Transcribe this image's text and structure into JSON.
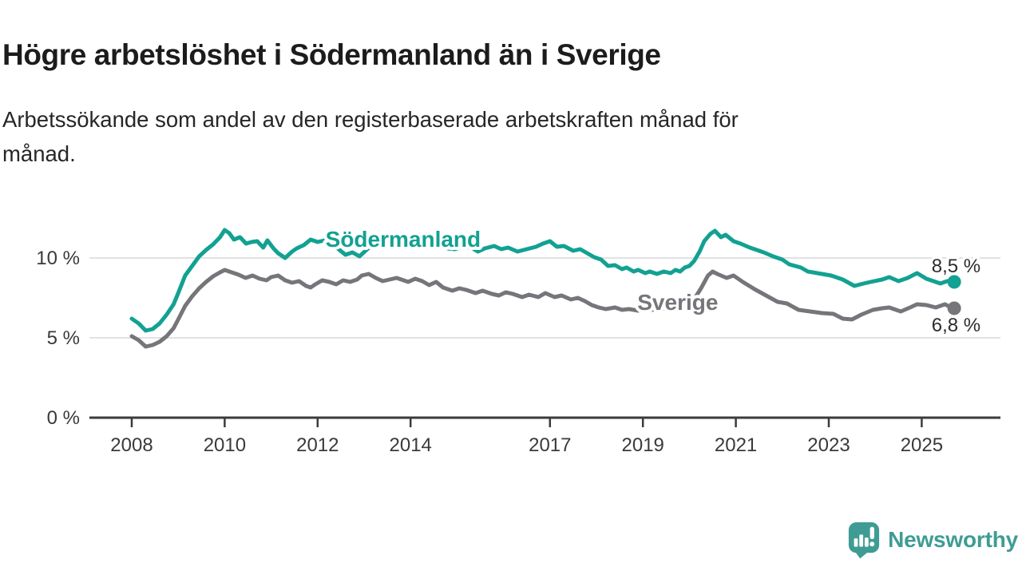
{
  "chart_data": {
    "type": "line",
    "title": "Högre arbetslöshet i Södermanland än i Sverige",
    "subtitle_lines": [
      "Arbetssökande som andel av den registerbaserade arbetskraften månad för",
      "månad."
    ],
    "x_unit": "year (monthly values)",
    "xlim": [
      2008,
      2026.1
    ],
    "ylim": [
      0,
      12.5
    ],
    "grid": true,
    "axis_color": "#3b3b3b",
    "grid_color": "#d8d8d8",
    "tick_label_color": "#3a3a3a",
    "value_label_color": "#2d2d2d",
    "yticks": [
      {
        "value": 0,
        "label": "0 %"
      },
      {
        "value": 5,
        "label": "5 %"
      },
      {
        "value": 10,
        "label": "10 %"
      }
    ],
    "xticks": [
      {
        "value": 2008,
        "label": "2008"
      },
      {
        "value": 2010,
        "label": "2010"
      },
      {
        "value": 2012,
        "label": "2012"
      },
      {
        "value": 2014,
        "label": "2014"
      },
      {
        "value": 2017,
        "label": "2017"
      },
      {
        "value": 2019,
        "label": "2019"
      },
      {
        "value": 2021,
        "label": "2021"
      },
      {
        "value": 2023,
        "label": "2023"
      },
      {
        "value": 2025,
        "label": "2025"
      }
    ],
    "series": [
      {
        "name": "Södermanland",
        "color": "#12A192",
        "end_value": 8.5,
        "end_label": "8,5 %",
        "label_anchor": {
          "x": 2013.84,
          "y": 10.7
        },
        "points": [
          [
            2008.0,
            6.2
          ],
          [
            2008.15,
            5.9
          ],
          [
            2008.3,
            5.45
          ],
          [
            2008.45,
            5.55
          ],
          [
            2008.6,
            5.9
          ],
          [
            2008.75,
            6.45
          ],
          [
            2008.9,
            7.1
          ],
          [
            2009.0,
            7.8
          ],
          [
            2009.15,
            8.9
          ],
          [
            2009.3,
            9.5
          ],
          [
            2009.45,
            10.1
          ],
          [
            2009.6,
            10.5
          ],
          [
            2009.75,
            10.85
          ],
          [
            2009.9,
            11.3
          ],
          [
            2010.0,
            11.75
          ],
          [
            2010.1,
            11.55
          ],
          [
            2010.2,
            11.15
          ],
          [
            2010.33,
            11.3
          ],
          [
            2010.46,
            10.9
          ],
          [
            2010.58,
            11.0
          ],
          [
            2010.7,
            11.05
          ],
          [
            2010.83,
            10.65
          ],
          [
            2010.92,
            11.1
          ],
          [
            2011.05,
            10.6
          ],
          [
            2011.15,
            10.3
          ],
          [
            2011.3,
            10.0
          ],
          [
            2011.45,
            10.4
          ],
          [
            2011.55,
            10.6
          ],
          [
            2011.7,
            10.8
          ],
          [
            2011.85,
            11.15
          ],
          [
            2012.0,
            11.0
          ],
          [
            2012.15,
            11.1
          ],
          [
            2012.3,
            10.85
          ],
          [
            2012.45,
            10.55
          ],
          [
            2012.6,
            10.2
          ],
          [
            2012.75,
            10.35
          ],
          [
            2012.9,
            10.1
          ],
          [
            2013.05,
            10.5
          ],
          [
            2013.2,
            10.9
          ],
          [
            2013.35,
            10.7
          ],
          [
            2013.5,
            10.85
          ],
          [
            2013.65,
            11.0
          ],
          [
            2013.8,
            10.8
          ],
          [
            2013.95,
            10.95
          ],
          [
            2014.1,
            10.85
          ],
          [
            2014.25,
            10.7
          ],
          [
            2014.45,
            11.0
          ],
          [
            2014.6,
            10.8
          ],
          [
            2014.8,
            10.6
          ],
          [
            2014.95,
            10.55
          ],
          [
            2015.1,
            10.7
          ],
          [
            2015.3,
            10.65
          ],
          [
            2015.45,
            10.4
          ],
          [
            2015.6,
            10.6
          ],
          [
            2015.8,
            10.75
          ],
          [
            2015.95,
            10.55
          ],
          [
            2016.1,
            10.65
          ],
          [
            2016.3,
            10.4
          ],
          [
            2016.5,
            10.55
          ],
          [
            2016.7,
            10.7
          ],
          [
            2016.85,
            10.9
          ],
          [
            2017.0,
            11.05
          ],
          [
            2017.15,
            10.7
          ],
          [
            2017.3,
            10.75
          ],
          [
            2017.5,
            10.45
          ],
          [
            2017.65,
            10.55
          ],
          [
            2017.8,
            10.3
          ],
          [
            2017.95,
            10.05
          ],
          [
            2018.1,
            9.9
          ],
          [
            2018.25,
            9.5
          ],
          [
            2018.4,
            9.55
          ],
          [
            2018.55,
            9.3
          ],
          [
            2018.65,
            9.4
          ],
          [
            2018.8,
            9.15
          ],
          [
            2018.9,
            9.25
          ],
          [
            2019.05,
            9.05
          ],
          [
            2019.15,
            9.15
          ],
          [
            2019.3,
            9.0
          ],
          [
            2019.45,
            9.15
          ],
          [
            2019.6,
            9.05
          ],
          [
            2019.7,
            9.25
          ],
          [
            2019.8,
            9.15
          ],
          [
            2019.9,
            9.4
          ],
          [
            2020.0,
            9.5
          ],
          [
            2020.1,
            9.8
          ],
          [
            2020.22,
            10.4
          ],
          [
            2020.32,
            11.05
          ],
          [
            2020.45,
            11.5
          ],
          [
            2020.55,
            11.7
          ],
          [
            2020.68,
            11.3
          ],
          [
            2020.78,
            11.45
          ],
          [
            2020.95,
            11.05
          ],
          [
            2021.1,
            10.9
          ],
          [
            2021.3,
            10.65
          ],
          [
            2021.45,
            10.5
          ],
          [
            2021.6,
            10.35
          ],
          [
            2021.8,
            10.1
          ],
          [
            2022.0,
            9.9
          ],
          [
            2022.15,
            9.6
          ],
          [
            2022.4,
            9.4
          ],
          [
            2022.55,
            9.15
          ],
          [
            2022.85,
            9.0
          ],
          [
            2023.05,
            8.9
          ],
          [
            2023.3,
            8.65
          ],
          [
            2023.55,
            8.25
          ],
          [
            2023.75,
            8.4
          ],
          [
            2023.9,
            8.5
          ],
          [
            2024.15,
            8.65
          ],
          [
            2024.3,
            8.8
          ],
          [
            2024.5,
            8.55
          ],
          [
            2024.7,
            8.75
          ],
          [
            2024.9,
            9.05
          ],
          [
            2025.1,
            8.7
          ],
          [
            2025.25,
            8.55
          ],
          [
            2025.4,
            8.4
          ],
          [
            2025.55,
            8.55
          ],
          [
            2025.7,
            8.5
          ]
        ]
      },
      {
        "name": "Sverige",
        "color": "#75757A",
        "end_value": 6.8,
        "end_label": "6,8 %",
        "label_anchor": {
          "x": 2019.75,
          "y": 6.75
        },
        "points": [
          [
            2008.0,
            5.1
          ],
          [
            2008.15,
            4.85
          ],
          [
            2008.3,
            4.45
          ],
          [
            2008.45,
            4.55
          ],
          [
            2008.6,
            4.75
          ],
          [
            2008.75,
            5.1
          ],
          [
            2008.9,
            5.6
          ],
          [
            2009.0,
            6.15
          ],
          [
            2009.15,
            7.0
          ],
          [
            2009.3,
            7.6
          ],
          [
            2009.45,
            8.1
          ],
          [
            2009.6,
            8.5
          ],
          [
            2009.75,
            8.85
          ],
          [
            2009.9,
            9.1
          ],
          [
            2010.0,
            9.25
          ],
          [
            2010.15,
            9.1
          ],
          [
            2010.3,
            8.95
          ],
          [
            2010.45,
            8.75
          ],
          [
            2010.6,
            8.9
          ],
          [
            2010.75,
            8.7
          ],
          [
            2010.9,
            8.6
          ],
          [
            2011.0,
            8.8
          ],
          [
            2011.15,
            8.9
          ],
          [
            2011.3,
            8.6
          ],
          [
            2011.45,
            8.45
          ],
          [
            2011.6,
            8.55
          ],
          [
            2011.75,
            8.25
          ],
          [
            2011.85,
            8.15
          ],
          [
            2011.95,
            8.35
          ],
          [
            2012.1,
            8.6
          ],
          [
            2012.25,
            8.5
          ],
          [
            2012.4,
            8.35
          ],
          [
            2012.55,
            8.6
          ],
          [
            2012.7,
            8.5
          ],
          [
            2012.85,
            8.65
          ],
          [
            2012.95,
            8.9
          ],
          [
            2013.1,
            9.0
          ],
          [
            2013.25,
            8.75
          ],
          [
            2013.4,
            8.55
          ],
          [
            2013.55,
            8.65
          ],
          [
            2013.7,
            8.75
          ],
          [
            2013.85,
            8.6
          ],
          [
            2013.95,
            8.5
          ],
          [
            2014.1,
            8.7
          ],
          [
            2014.25,
            8.55
          ],
          [
            2014.4,
            8.3
          ],
          [
            2014.55,
            8.5
          ],
          [
            2014.7,
            8.15
          ],
          [
            2014.9,
            7.95
          ],
          [
            2015.05,
            8.1
          ],
          [
            2015.2,
            8.0
          ],
          [
            2015.4,
            7.8
          ],
          [
            2015.55,
            7.95
          ],
          [
            2015.75,
            7.75
          ],
          [
            2015.9,
            7.65
          ],
          [
            2016.05,
            7.85
          ],
          [
            2016.2,
            7.75
          ],
          [
            2016.4,
            7.55
          ],
          [
            2016.55,
            7.7
          ],
          [
            2016.75,
            7.55
          ],
          [
            2016.9,
            7.8
          ],
          [
            2017.1,
            7.55
          ],
          [
            2017.25,
            7.65
          ],
          [
            2017.45,
            7.4
          ],
          [
            2017.6,
            7.5
          ],
          [
            2017.75,
            7.3
          ],
          [
            2017.9,
            7.05
          ],
          [
            2018.05,
            6.9
          ],
          [
            2018.2,
            6.8
          ],
          [
            2018.4,
            6.9
          ],
          [
            2018.55,
            6.75
          ],
          [
            2018.7,
            6.8
          ],
          [
            2018.9,
            6.7
          ],
          [
            2019.05,
            6.8
          ],
          [
            2019.25,
            6.75
          ],
          [
            2019.45,
            6.85
          ],
          [
            2019.6,
            6.9
          ],
          [
            2019.8,
            6.85
          ],
          [
            2019.95,
            7.0
          ],
          [
            2020.1,
            7.4
          ],
          [
            2020.25,
            8.1
          ],
          [
            2020.4,
            8.9
          ],
          [
            2020.5,
            9.15
          ],
          [
            2020.6,
            9.0
          ],
          [
            2020.8,
            8.75
          ],
          [
            2020.95,
            8.9
          ],
          [
            2021.15,
            8.5
          ],
          [
            2021.4,
            8.05
          ],
          [
            2021.65,
            7.65
          ],
          [
            2021.9,
            7.25
          ],
          [
            2022.1,
            7.15
          ],
          [
            2022.35,
            6.75
          ],
          [
            2022.6,
            6.65
          ],
          [
            2022.85,
            6.55
          ],
          [
            2023.1,
            6.5
          ],
          [
            2023.3,
            6.2
          ],
          [
            2023.5,
            6.15
          ],
          [
            2023.7,
            6.45
          ],
          [
            2023.95,
            6.75
          ],
          [
            2024.15,
            6.85
          ],
          [
            2024.3,
            6.9
          ],
          [
            2024.55,
            6.65
          ],
          [
            2024.75,
            6.9
          ],
          [
            2024.9,
            7.1
          ],
          [
            2025.1,
            7.05
          ],
          [
            2025.3,
            6.9
          ],
          [
            2025.5,
            7.1
          ],
          [
            2025.6,
            6.95
          ],
          [
            2025.7,
            6.85
          ]
        ]
      }
    ]
  },
  "branding": {
    "name": "Newsworthy",
    "color": "#3F9C95"
  }
}
